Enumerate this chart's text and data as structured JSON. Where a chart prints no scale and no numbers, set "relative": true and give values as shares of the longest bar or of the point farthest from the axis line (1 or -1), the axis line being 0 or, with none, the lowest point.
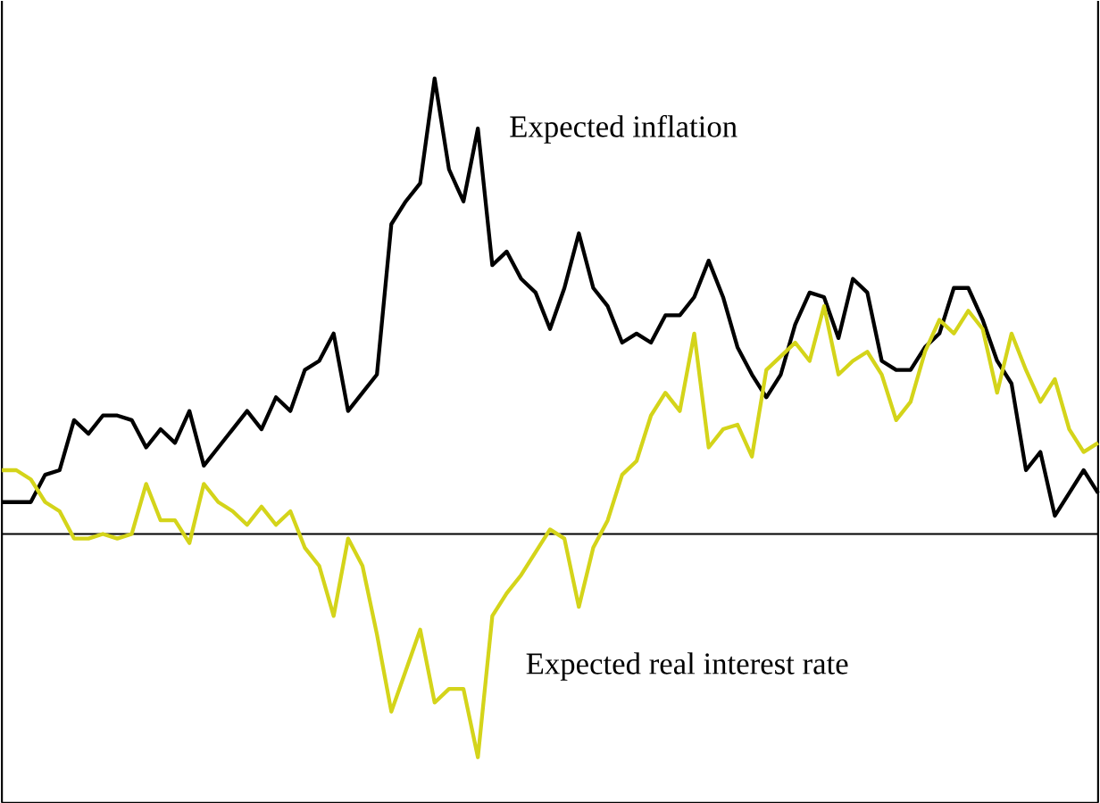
{
  "chart_data": {
    "type": "line",
    "relative": true,
    "categories": [
      null,
      null,
      null,
      null,
      null,
      null,
      null,
      null,
      null,
      null,
      null,
      null,
      null,
      null,
      null,
      null,
      null,
      null,
      null,
      null,
      null,
      null,
      null,
      null,
      null,
      null,
      null,
      null,
      null,
      null,
      null,
      null,
      null,
      null,
      null,
      null,
      null,
      null,
      null,
      null,
      null,
      null,
      null,
      null,
      null,
      null,
      null,
      null,
      null,
      null,
      null,
      null,
      null,
      null,
      null,
      null,
      null,
      null,
      null,
      null,
      null,
      null,
      null,
      null,
      null,
      null,
      null,
      null,
      null,
      null,
      null,
      null,
      null,
      null,
      null,
      null,
      null
    ],
    "series": [
      {
        "name": "Expected inflation",
        "color": "#000000",
        "values": [
          0.07,
          0.07,
          0.07,
          0.13,
          0.14,
          0.25,
          0.22,
          0.26,
          0.26,
          0.25,
          0.19,
          0.23,
          0.2,
          0.27,
          0.15,
          0.19,
          0.23,
          0.27,
          0.23,
          0.3,
          0.27,
          0.36,
          0.38,
          0.44,
          0.27,
          0.31,
          0.35,
          0.68,
          0.73,
          0.77,
          1,
          0.8,
          0.73,
          0.89,
          0.59,
          0.62,
          0.56,
          0.53,
          0.45,
          0.54,
          0.66,
          0.54,
          0.5,
          0.42,
          0.44,
          0.42,
          0.48,
          0.48,
          0.52,
          0.6,
          0.52,
          0.41,
          0.35,
          0.3,
          0.35,
          0.46,
          0.53,
          0.52,
          0.43,
          0.56,
          0.53,
          0.38,
          0.36,
          0.36,
          0.41,
          0.44,
          0.54,
          0.54,
          0.47,
          0.38,
          0.33,
          0.14,
          0.18,
          0.04,
          0.09,
          0.14,
          0.09
        ]
      },
      {
        "name": "Expected real interest rate",
        "color": "#d4d41a",
        "values": [
          0.14,
          0.14,
          0.12,
          0.07,
          0.05,
          -0.01,
          -0.01,
          0,
          -0.01,
          0,
          0.11,
          0.03,
          0.03,
          -0.02,
          0.11,
          0.07,
          0.05,
          0.02,
          0.06,
          0.02,
          0.05,
          -0.03,
          -0.07,
          -0.18,
          -0.01,
          -0.07,
          -0.22,
          -0.39,
          -0.3,
          -0.21,
          -0.37,
          -0.34,
          -0.34,
          -0.49,
          -0.18,
          -0.13,
          -0.09,
          -0.04,
          0.01,
          -0.01,
          -0.16,
          -0.03,
          0.03,
          0.13,
          0.16,
          0.26,
          0.31,
          0.27,
          0.44,
          0.19,
          0.23,
          0.24,
          0.17,
          0.36,
          0.39,
          0.42,
          0.38,
          0.5,
          0.35,
          0.38,
          0.4,
          0.35,
          0.25,
          0.29,
          0.4,
          0.47,
          0.44,
          0.49,
          0.45,
          0.31,
          0.44,
          0.36,
          0.29,
          0.34,
          0.23,
          0.18,
          0.2
        ]
      }
    ],
    "line_style": "solid",
    "marker": "none",
    "legend": false
  }
}
